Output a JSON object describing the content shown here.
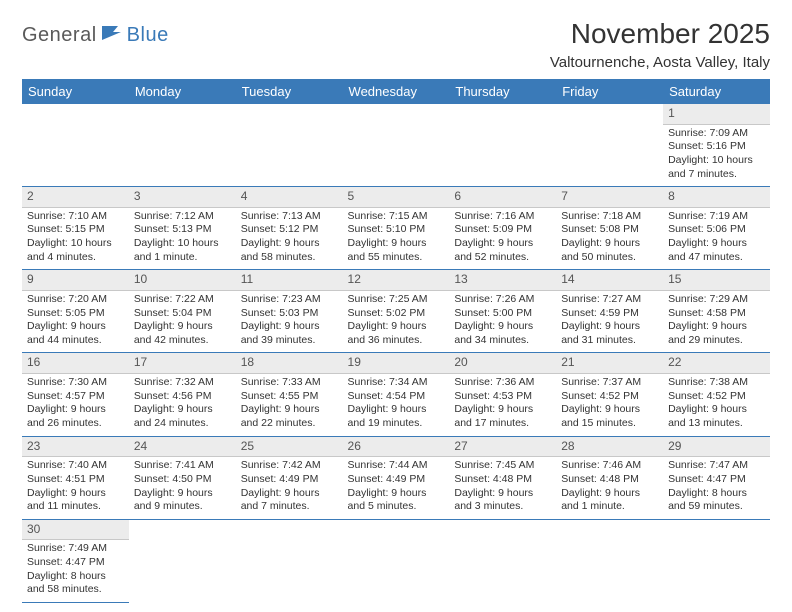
{
  "logo": {
    "part1": "General",
    "part2": "Blue"
  },
  "title": "November 2025",
  "location": "Valtournenche, Aosta Valley, Italy",
  "colors": {
    "header_bg": "#3a7ab8",
    "header_text": "#ffffff",
    "daynum_bg": "#ececec",
    "row_divider": "#3a7ab8",
    "logo_gray": "#5a5a5a",
    "logo_blue": "#3a7ab8"
  },
  "weekdays": [
    "Sunday",
    "Monday",
    "Tuesday",
    "Wednesday",
    "Thursday",
    "Friday",
    "Saturday"
  ],
  "weeks": [
    [
      null,
      null,
      null,
      null,
      null,
      null,
      {
        "n": "1",
        "sr": "Sunrise: 7:09 AM",
        "ss": "Sunset: 5:16 PM",
        "dl": "Daylight: 10 hours and 7 minutes."
      }
    ],
    [
      {
        "n": "2",
        "sr": "Sunrise: 7:10 AM",
        "ss": "Sunset: 5:15 PM",
        "dl": "Daylight: 10 hours and 4 minutes."
      },
      {
        "n": "3",
        "sr": "Sunrise: 7:12 AM",
        "ss": "Sunset: 5:13 PM",
        "dl": "Daylight: 10 hours and 1 minute."
      },
      {
        "n": "4",
        "sr": "Sunrise: 7:13 AM",
        "ss": "Sunset: 5:12 PM",
        "dl": "Daylight: 9 hours and 58 minutes."
      },
      {
        "n": "5",
        "sr": "Sunrise: 7:15 AM",
        "ss": "Sunset: 5:10 PM",
        "dl": "Daylight: 9 hours and 55 minutes."
      },
      {
        "n": "6",
        "sr": "Sunrise: 7:16 AM",
        "ss": "Sunset: 5:09 PM",
        "dl": "Daylight: 9 hours and 52 minutes."
      },
      {
        "n": "7",
        "sr": "Sunrise: 7:18 AM",
        "ss": "Sunset: 5:08 PM",
        "dl": "Daylight: 9 hours and 50 minutes."
      },
      {
        "n": "8",
        "sr": "Sunrise: 7:19 AM",
        "ss": "Sunset: 5:06 PM",
        "dl": "Daylight: 9 hours and 47 minutes."
      }
    ],
    [
      {
        "n": "9",
        "sr": "Sunrise: 7:20 AM",
        "ss": "Sunset: 5:05 PM",
        "dl": "Daylight: 9 hours and 44 minutes."
      },
      {
        "n": "10",
        "sr": "Sunrise: 7:22 AM",
        "ss": "Sunset: 5:04 PM",
        "dl": "Daylight: 9 hours and 42 minutes."
      },
      {
        "n": "11",
        "sr": "Sunrise: 7:23 AM",
        "ss": "Sunset: 5:03 PM",
        "dl": "Daylight: 9 hours and 39 minutes."
      },
      {
        "n": "12",
        "sr": "Sunrise: 7:25 AM",
        "ss": "Sunset: 5:02 PM",
        "dl": "Daylight: 9 hours and 36 minutes."
      },
      {
        "n": "13",
        "sr": "Sunrise: 7:26 AM",
        "ss": "Sunset: 5:00 PM",
        "dl": "Daylight: 9 hours and 34 minutes."
      },
      {
        "n": "14",
        "sr": "Sunrise: 7:27 AM",
        "ss": "Sunset: 4:59 PM",
        "dl": "Daylight: 9 hours and 31 minutes."
      },
      {
        "n": "15",
        "sr": "Sunrise: 7:29 AM",
        "ss": "Sunset: 4:58 PM",
        "dl": "Daylight: 9 hours and 29 minutes."
      }
    ],
    [
      {
        "n": "16",
        "sr": "Sunrise: 7:30 AM",
        "ss": "Sunset: 4:57 PM",
        "dl": "Daylight: 9 hours and 26 minutes."
      },
      {
        "n": "17",
        "sr": "Sunrise: 7:32 AM",
        "ss": "Sunset: 4:56 PM",
        "dl": "Daylight: 9 hours and 24 minutes."
      },
      {
        "n": "18",
        "sr": "Sunrise: 7:33 AM",
        "ss": "Sunset: 4:55 PM",
        "dl": "Daylight: 9 hours and 22 minutes."
      },
      {
        "n": "19",
        "sr": "Sunrise: 7:34 AM",
        "ss": "Sunset: 4:54 PM",
        "dl": "Daylight: 9 hours and 19 minutes."
      },
      {
        "n": "20",
        "sr": "Sunrise: 7:36 AM",
        "ss": "Sunset: 4:53 PM",
        "dl": "Daylight: 9 hours and 17 minutes."
      },
      {
        "n": "21",
        "sr": "Sunrise: 7:37 AM",
        "ss": "Sunset: 4:52 PM",
        "dl": "Daylight: 9 hours and 15 minutes."
      },
      {
        "n": "22",
        "sr": "Sunrise: 7:38 AM",
        "ss": "Sunset: 4:52 PM",
        "dl": "Daylight: 9 hours and 13 minutes."
      }
    ],
    [
      {
        "n": "23",
        "sr": "Sunrise: 7:40 AM",
        "ss": "Sunset: 4:51 PM",
        "dl": "Daylight: 9 hours and 11 minutes."
      },
      {
        "n": "24",
        "sr": "Sunrise: 7:41 AM",
        "ss": "Sunset: 4:50 PM",
        "dl": "Daylight: 9 hours and 9 minutes."
      },
      {
        "n": "25",
        "sr": "Sunrise: 7:42 AM",
        "ss": "Sunset: 4:49 PM",
        "dl": "Daylight: 9 hours and 7 minutes."
      },
      {
        "n": "26",
        "sr": "Sunrise: 7:44 AM",
        "ss": "Sunset: 4:49 PM",
        "dl": "Daylight: 9 hours and 5 minutes."
      },
      {
        "n": "27",
        "sr": "Sunrise: 7:45 AM",
        "ss": "Sunset: 4:48 PM",
        "dl": "Daylight: 9 hours and 3 minutes."
      },
      {
        "n": "28",
        "sr": "Sunrise: 7:46 AM",
        "ss": "Sunset: 4:48 PM",
        "dl": "Daylight: 9 hours and 1 minute."
      },
      {
        "n": "29",
        "sr": "Sunrise: 7:47 AM",
        "ss": "Sunset: 4:47 PM",
        "dl": "Daylight: 8 hours and 59 minutes."
      }
    ],
    [
      {
        "n": "30",
        "sr": "Sunrise: 7:49 AM",
        "ss": "Sunset: 4:47 PM",
        "dl": "Daylight: 8 hours and 58 minutes."
      },
      null,
      null,
      null,
      null,
      null,
      null
    ]
  ]
}
